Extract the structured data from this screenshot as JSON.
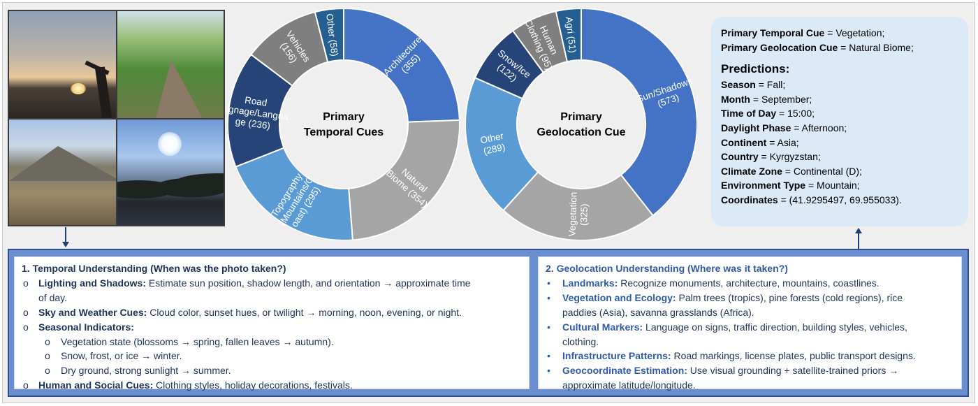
{
  "charts": {
    "temporal": {
      "center_lines": [
        "Primary",
        "Temporal Cues"
      ],
      "slices": [
        {
          "name": "Architecture",
          "value": 355,
          "line1": "Architecture",
          "line2": "(355)",
          "color": "#4472c4"
        },
        {
          "name": "Natural Biome",
          "value": 354,
          "line1": "Natural",
          "line2": "Biome (354)",
          "color": "#a5a5a5"
        },
        {
          "name": "Topography (Mountains/Coast)",
          "value": 295,
          "line1": "Topography",
          "line2": "(Mountains/C",
          "line3": "oast) (295)",
          "color": "#5b9bd5"
        },
        {
          "name": "Road Signage/Language",
          "value": 236,
          "line1": "Road",
          "line2": "Signage/Langua",
          "line3": "ge (236)",
          "color": "#264478"
        },
        {
          "name": "Vehicles",
          "value": 156,
          "line1": "Vehicles",
          "line2": "(156)",
          "color": "#7f7f7f"
        },
        {
          "name": "Other",
          "value": 58,
          "line1": "Other (58)",
          "color": "#255e91"
        }
      ]
    },
    "geolocation": {
      "center_lines": [
        "Primary",
        "Geolocation Cue"
      ],
      "slices": [
        {
          "name": "Sun/Shadows",
          "value": 573,
          "line1": "Sun/Shadows",
          "line2": "(573)",
          "color": "#4472c4"
        },
        {
          "name": "Vegetation",
          "value": 325,
          "line1": "Vegetation",
          "line2": "(325)",
          "color": "#a5a5a5"
        },
        {
          "name": "Other",
          "value": 289,
          "line1": "Other",
          "line2": "(289)",
          "color": "#5b9bd5"
        },
        {
          "name": "Snow/Ice",
          "value": 122,
          "line1": "Snow/Ice",
          "line2": "(122)",
          "color": "#264478"
        },
        {
          "name": "Human Clothing",
          "value": 95,
          "line1": "Human",
          "line2": "Clothing (95)",
          "color": "#7f7f7f"
        },
        {
          "name": "Agri",
          "value": 51,
          "line1": "Agri (51)",
          "color": "#255e91"
        }
      ]
    }
  },
  "chart_data": [
    {
      "type": "pie",
      "title": "Primary Temporal Cues",
      "categories": [
        "Architecture",
        "Natural Biome",
        "Topography (Mountains/Coast)",
        "Road Signage/Language",
        "Vehicles",
        "Other"
      ],
      "values": [
        355,
        354,
        295,
        236,
        156,
        58
      ]
    },
    {
      "type": "pie",
      "title": "Primary Geolocation Cue",
      "categories": [
        "Sun/Shadows",
        "Vegetation",
        "Other",
        "Snow/Ice",
        "Human Clothing",
        "Agri"
      ],
      "values": [
        573,
        325,
        289,
        122,
        95,
        51
      ]
    }
  ],
  "predictions": {
    "cue_temporal_label": "Primary Temporal Cue",
    "cue_temporal_value": " = Vegetation;",
    "cue_geo_label": "Primary Geolocation Cue",
    "cue_geo_value": " = Natural Biome;",
    "title": "Predictions:",
    "items": [
      {
        "label": "Season",
        "value": " = Fall;"
      },
      {
        "label": "Month",
        "value": " = September;"
      },
      {
        "label": "Time of Day",
        "value": " = 15:00;"
      },
      {
        "label": "Daylight Phase",
        "value": " = Afternoon;"
      },
      {
        "label": "Continent",
        "value": " = Asia;"
      },
      {
        "label": "Country",
        "value": " = Kyrgyzstan;"
      },
      {
        "label": "Climate Zone",
        "value": " = Continental (D);"
      },
      {
        "label": "Environment Type",
        "value": " = Mountain;"
      },
      {
        "label": "Coordinates",
        "value": " = (41.9295497, 69.955033)."
      }
    ]
  },
  "temporal_card": {
    "title": "1. Temporal Understanding (When was the photo taken?)",
    "items": [
      {
        "label": "Lighting and Shadows:",
        "text": " Estimate sun position, shadow length, and orientation → approximate time",
        "cont": "of day."
      },
      {
        "label": "Sky and Weather Cues:",
        "text": " Cloud color, sunset hues, or twilight → morning, noon, evening, or night."
      },
      {
        "label": "Seasonal Indicators:",
        "text": ""
      },
      {
        "label": "Human and Social Cues:",
        "text": " Clothing styles, holiday decorations, festivals."
      }
    ],
    "sub_items": [
      "Vegetation state (blossoms → spring, fallen leaves → autumn).",
      "Snow, frost, or ice → winter.",
      "Dry ground, strong sunlight → summer."
    ],
    "marker": "o"
  },
  "geo_card": {
    "title": "2. Geolocation Understanding (Where was it taken?)",
    "marker": "•",
    "items": [
      {
        "label": "Landmarks:",
        "text": " Recognize monuments, architecture, mountains, coastlines."
      },
      {
        "label": "Vegetation and Ecology:",
        "text": " Palm trees (tropics), pine forests (cold regions), rice",
        "cont": "paddies (Asia), savanna grasslands (Africa)."
      },
      {
        "label": "Cultural Markers:",
        "text": " Language on signs, traffic direction, building styles, vehicles,",
        "cont": "clothing."
      },
      {
        "label": "Infrastructure Patterns:",
        "text": " Road markings, license plates, public transport designs."
      },
      {
        "label": "Geocoordinate Estimation:",
        "text": " Use visual grounding + satellite-trained priors →",
        "cont": "approximate latitude/longitude."
      }
    ]
  }
}
